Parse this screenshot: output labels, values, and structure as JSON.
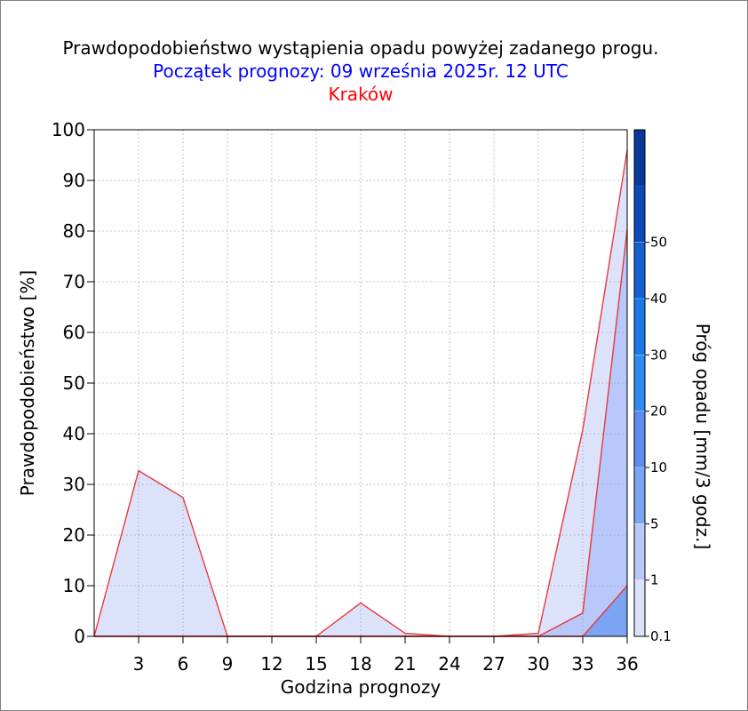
{
  "chart_data": {
    "type": "area",
    "title": "Prawdopodobieństwo wystąpienia opadu powyżej zadanego progu.",
    "subtitle": "Początek prognozy: 09 września 2025r. 12 UTC",
    "location": "Kraków",
    "xlabel": "Godzina prognozy",
    "ylabel": "Prawdopodobieństwo [%]",
    "colorbar_label": "Próg opadu [mm/3 godz.]",
    "xlim": [
      0,
      36
    ],
    "ylim": [
      0,
      100
    ],
    "x_ticks": [
      3,
      6,
      9,
      12,
      15,
      18,
      21,
      24,
      27,
      30,
      33,
      36
    ],
    "y_ticks": [
      0,
      10,
      20,
      30,
      40,
      50,
      60,
      70,
      80,
      90,
      100
    ],
    "grid": true,
    "x": [
      0,
      3,
      6,
      9,
      12,
      15,
      18,
      21,
      24,
      27,
      30,
      33,
      36
    ],
    "series": [
      {
        "threshold": "0.1",
        "color": "#dde2fb",
        "values": [
          0,
          32.7,
          27.4,
          0,
          0,
          0,
          6.6,
          0.6,
          0,
          0,
          0.6,
          40.8,
          96.0
        ]
      },
      {
        "threshold": "1",
        "color": "#b9c8fb",
        "values": [
          0,
          0,
          0,
          0,
          0,
          0,
          0,
          0,
          0,
          0,
          0,
          4.6,
          80.3
        ]
      },
      {
        "threshold": "5",
        "color": "#7ba4f3",
        "values": [
          0,
          0,
          0,
          0,
          0,
          0,
          0,
          0,
          0,
          0,
          0,
          0,
          10.0
        ]
      }
    ],
    "colorbar": {
      "labels": [
        "0.1",
        "1",
        "5",
        "10",
        "20",
        "30",
        "40",
        "50"
      ],
      "colors": [
        "#dde2fb",
        "#b9c8fb",
        "#7ba4f3",
        "#5b8df0",
        "#2f8af2",
        "#1a78e8",
        "#1460d0",
        "#0c48b8",
        "#083a9c"
      ]
    },
    "line_color": "#e8393a"
  }
}
